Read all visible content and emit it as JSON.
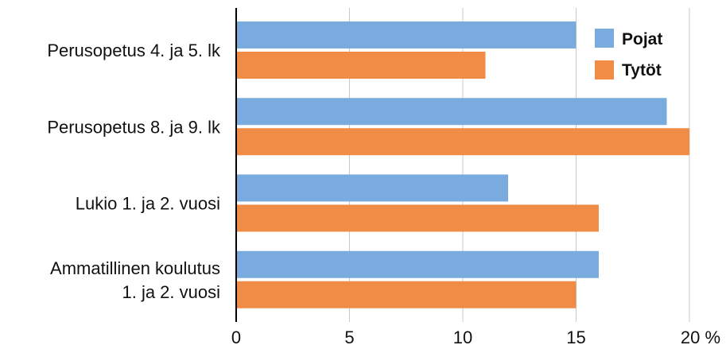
{
  "chart_data": {
    "type": "bar",
    "orientation": "horizontal",
    "categories": [
      [
        "Perusopetus 4. ja 5. lk"
      ],
      [
        "Perusopetus 8. ja 9. lk"
      ],
      [
        "Lukio 1. ja 2. vuosi"
      ],
      [
        "Ammatillinen koulutus",
        "1. ja 2. vuosi"
      ]
    ],
    "series": [
      {
        "name": "Pojat",
        "color": "#7aabde",
        "values": [
          15,
          19,
          12,
          16
        ]
      },
      {
        "name": "Tytöt",
        "color": "#f08c46",
        "values": [
          11,
          20,
          16,
          15
        ]
      }
    ],
    "xticks": [
      {
        "value": 0,
        "label": "0"
      },
      {
        "value": 5,
        "label": "5"
      },
      {
        "value": 10,
        "label": "10"
      },
      {
        "value": 15,
        "label": "15"
      },
      {
        "value": 20,
        "label": "20 %"
      }
    ],
    "xlim": [
      0,
      20
    ],
    "grid": true,
    "legend_position": "top-right",
    "title": "",
    "xlabel": "",
    "ylabel": ""
  }
}
